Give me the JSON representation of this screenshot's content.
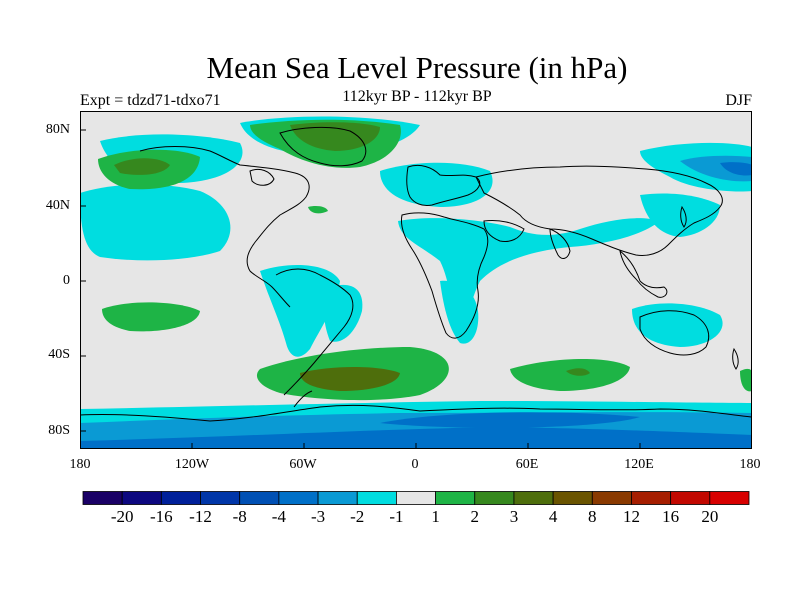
{
  "title": "Mean Sea Level Pressure (in hPa)",
  "experiment": "Expt = tdzd71-tdxo71",
  "subtitle": "112kyr BP - 112kyr BP",
  "season": "DJF",
  "y_ticks": [
    "80N",
    "40N",
    "0",
    "40S",
    "80S"
  ],
  "x_ticks": [
    "180",
    "120W",
    "60W",
    "0",
    "60E",
    "120E",
    "180"
  ],
  "colorbar": {
    "colors": [
      "#1a0066",
      "#0d0880",
      "#00209a",
      "#0036a8",
      "#0050b4",
      "#0070c8",
      "#0a9ad4",
      "#00dde0",
      "#e6e6e6",
      "#1eb446",
      "#36881e",
      "#4e6e0c",
      "#6a5400",
      "#8a3a00",
      "#a61e00",
      "#c20800",
      "#d80000"
    ],
    "labels": [
      "-20",
      "-16",
      "-12",
      "-8",
      "-4",
      "-3",
      "-2",
      "-1",
      "1",
      "2",
      "3",
      "4",
      "8",
      "12",
      "16",
      "20"
    ]
  },
  "style": {
    "ocean_gray": "#e6e6e6",
    "frame": "#000000"
  }
}
